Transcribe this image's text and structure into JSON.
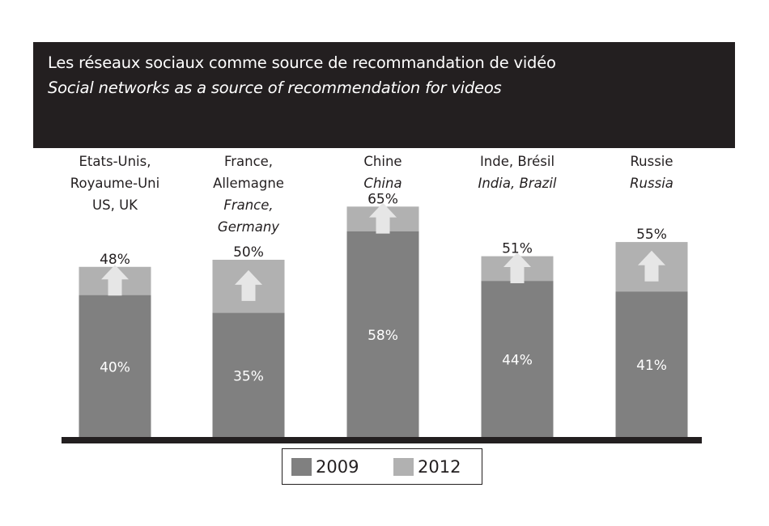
{
  "title": "Les réseaux sociaux comme source de recommandation de vidéo",
  "subtitle": "Social networks as a source of recommendation for videos",
  "colors": {
    "header_bg": "#231f20",
    "series_2009": "#808080",
    "series_2012": "#b1b1b1",
    "arrow": "#e6e6e6",
    "baseline": "#231f20"
  },
  "chart_data": {
    "type": "bar",
    "stacked_overlay": true,
    "categories": [
      [
        "Etats-Unis,",
        "Royaume-Uni",
        "US, UK"
      ],
      [
        "France,",
        "Allemagne",
        "France,",
        "Germany"
      ],
      [
        "Chine",
        "China"
      ],
      [
        "Inde, Brésil",
        "India, Brazil"
      ],
      [
        "Russie",
        "Russia"
      ]
    ],
    "category_italic": [
      [
        false,
        false,
        false
      ],
      [
        false,
        false,
        true,
        true
      ],
      [
        false,
        true
      ],
      [
        false,
        true
      ],
      [
        false,
        true
      ]
    ],
    "series": [
      {
        "name": "2009",
        "values": [
          40,
          35,
          58,
          44,
          41
        ],
        "labels": [
          "40%",
          "35%",
          "58%",
          "44%",
          "41%"
        ]
      },
      {
        "name": "2012",
        "values": [
          48,
          50,
          65,
          51,
          55
        ],
        "labels": [
          "48%",
          "50%",
          "65%",
          "51%",
          "55%"
        ]
      }
    ],
    "ylim": [
      0,
      100
    ],
    "grid": false,
    "legend_position": "bottom-center"
  }
}
